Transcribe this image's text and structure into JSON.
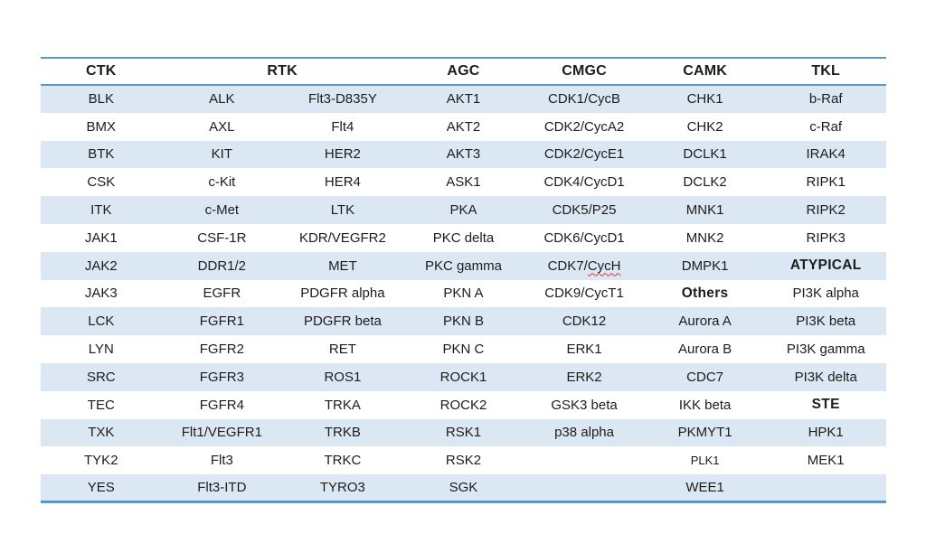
{
  "page": {
    "background_color": "#ffffff"
  },
  "table": {
    "accent_border_color": "#549ad2",
    "band_color": "#dbe8f4",
    "text_color": "#1c1c1c",
    "header": [
      {
        "label": "CTK",
        "colspan": 1
      },
      {
        "label": "RTK",
        "colspan": 2
      },
      {
        "label": "AGC",
        "colspan": 1
      },
      {
        "label": "CMGC",
        "colspan": 1
      },
      {
        "label": "CAMK",
        "colspan": 1
      },
      {
        "label": "TKL",
        "colspan": 1
      }
    ],
    "rows": [
      [
        "BLK",
        "ALK",
        "Flt3-D835Y",
        "AKT1",
        "CDK1/CycB",
        "CHK1",
        "b-Raf"
      ],
      [
        "BMX",
        "AXL",
        "Flt4",
        "AKT2",
        "CDK2/CycA2",
        "CHK2",
        "c-Raf"
      ],
      [
        "BTK",
        "KIT",
        "HER2",
        "AKT3",
        "CDK2/CycE1",
        "DCLK1",
        "IRAK4"
      ],
      [
        "CSK",
        "c-Kit",
        "HER4",
        "ASK1",
        "CDK4/CycD1",
        "DCLK2",
        "RIPK1"
      ],
      [
        "ITK",
        "c-Met",
        "LTK",
        "PKA",
        "CDK5/P25",
        "MNK1",
        "RIPK2"
      ],
      [
        "JAK1",
        "CSF-1R",
        "KDR/VEGFR2",
        "PKC delta",
        "CDK6/CycD1",
        "MNK2",
        "RIPK3"
      ],
      [
        "JAK2",
        "DDR1/2",
        "MET",
        "PKC gamma",
        {
          "text": "CDK7/CycH",
          "spell_error": "CycH"
        },
        "DMPK1",
        {
          "text": "ATYPICAL",
          "bold": true
        }
      ],
      [
        "JAK3",
        "EGFR",
        "PDGFR alpha",
        "PKN A",
        "CDK9/CycT1",
        {
          "text": "Others",
          "bold": true
        },
        "PI3K alpha"
      ],
      [
        "LCK",
        "FGFR1",
        "PDGFR beta",
        "PKN B",
        "CDK12",
        "Aurora A",
        "PI3K beta"
      ],
      [
        "LYN",
        "FGFR2",
        "RET",
        "PKN C",
        "ERK1",
        "Aurora B",
        "PI3K gamma"
      ],
      [
        "SRC",
        "FGFR3",
        "ROS1",
        "ROCK1",
        "ERK2",
        "CDC7",
        "PI3K delta"
      ],
      [
        "TEC",
        "FGFR4",
        "TRKA",
        "ROCK2",
        "GSK3 beta",
        "IKK beta",
        {
          "text": "STE",
          "bold": true
        }
      ],
      [
        "TXK",
        "Flt1/VEGFR1",
        "TRKB",
        "RSK1",
        "p38 alpha",
        "PKMYT1",
        "HPK1"
      ],
      [
        "TYK2",
        "Flt3",
        "TRKC",
        "RSK2",
        "",
        {
          "text": "PLK1",
          "small": true
        },
        "MEK1"
      ],
      [
        "YES",
        "Flt3-ITD",
        "TYRO3",
        "SGK",
        "",
        "WEE1",
        ""
      ]
    ]
  }
}
